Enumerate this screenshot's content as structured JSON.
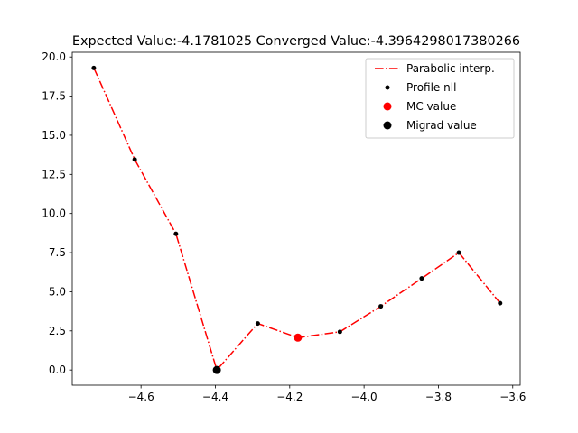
{
  "chart_data": {
    "type": "line",
    "title": "Expected Value:-4.1781025 Converged Value:-4.3964298017380266",
    "xlabel": "",
    "ylabel": "",
    "xlim": [
      -4.785,
      -3.58
    ],
    "ylim": [
      -0.97,
      20.3
    ],
    "xticks": [
      -4.6,
      -4.4,
      -4.2,
      -4.0,
      -3.8,
      -3.6
    ],
    "xtick_labels": [
      "−4.6",
      "−4.4",
      "−4.2",
      "−4.0",
      "−3.8",
      "−3.6"
    ],
    "yticks": [
      0.0,
      2.5,
      5.0,
      7.5,
      10.0,
      12.5,
      15.0,
      17.5,
      20.0
    ],
    "ytick_labels": [
      "0.0",
      "2.5",
      "5.0",
      "7.5",
      "10.0",
      "12.5",
      "15.0",
      "17.5",
      "20.0"
    ],
    "grid": false,
    "legend_placement": "top-right",
    "series": [
      {
        "name": "Parabolic interp.",
        "style": "dash-dot line",
        "color": "#ff0000",
        "x": [
          -4.727,
          -4.617,
          -4.506,
          -4.396,
          -4.286,
          -4.178,
          -4.065,
          -3.955,
          -3.845,
          -3.745,
          -3.634
        ],
        "y": [
          19.3,
          13.45,
          8.7,
          0.0,
          2.97,
          2.07,
          2.44,
          4.07,
          5.85,
          7.5,
          4.27
        ]
      },
      {
        "name": "Profile nll",
        "style": "points",
        "color": "#000000",
        "x": [
          -4.727,
          -4.617,
          -4.506,
          -4.286,
          -4.065,
          -3.955,
          -3.845,
          -3.745,
          -3.634
        ],
        "y": [
          19.3,
          13.45,
          8.7,
          2.97,
          2.44,
          4.07,
          5.85,
          7.5,
          4.27
        ]
      },
      {
        "name": "MC value",
        "style": "marker",
        "color": "#ff0000",
        "x": [
          -4.178
        ],
        "y": [
          2.07
        ]
      },
      {
        "name": "Migrad value",
        "style": "marker",
        "color": "#000000",
        "x": [
          -4.396
        ],
        "y": [
          0.0
        ]
      }
    ]
  }
}
